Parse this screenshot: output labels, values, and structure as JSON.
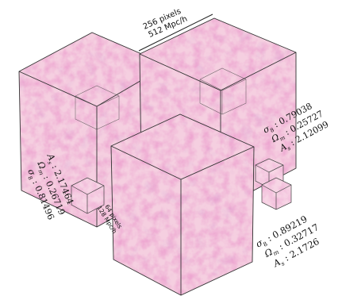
{
  "scale_large": {
    "pixels": "256 pixels",
    "size": "512 Mpc/h"
  },
  "scale_small": {
    "pixels": "64 pixels",
    "size": "128 Mpc/h"
  },
  "cubes": [
    {
      "id": "left",
      "sigma8": "0.81496",
      "omega_m": "0.26719",
      "A_s": "2.17464"
    },
    {
      "id": "right",
      "sigma8": "0.79038",
      "omega_m": "0.25727",
      "A_s": "2.12099"
    },
    {
      "id": "front",
      "sigma8": "0.89219",
      "omega_m": "0.32717",
      "A_s": "2.1726"
    }
  ],
  "colors": {
    "cube_fill": "#f4c6dc",
    "cube_texture": "#d65a9e",
    "edge": "#333333"
  }
}
